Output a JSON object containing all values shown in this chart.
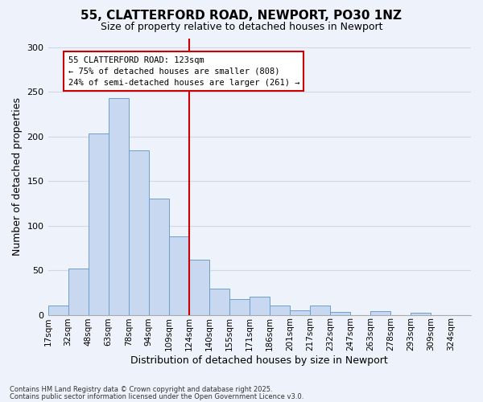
{
  "title": "55, CLATTERFORD ROAD, NEWPORT, PO30 1NZ",
  "subtitle": "Size of property relative to detached houses in Newport",
  "xlabel": "Distribution of detached houses by size in Newport",
  "ylabel": "Number of detached properties",
  "bar_labels": [
    "17sqm",
    "32sqm",
    "48sqm",
    "63sqm",
    "78sqm",
    "94sqm",
    "109sqm",
    "124sqm",
    "140sqm",
    "155sqm",
    "171sqm",
    "186sqm",
    "201sqm",
    "217sqm",
    "232sqm",
    "247sqm",
    "263sqm",
    "278sqm",
    "293sqm",
    "309sqm",
    "324sqm"
  ],
  "bar_heights": [
    10,
    52,
    203,
    243,
    184,
    130,
    88,
    62,
    29,
    18,
    20,
    10,
    5,
    10,
    3,
    0,
    4,
    0,
    2,
    0,
    0
  ],
  "bar_color": "#c8d8f0",
  "bar_edge_color": "#6ba0cc",
  "vline_label": "124sqm",
  "vline_index": 7,
  "vline_color": "#cc0000",
  "annotation_title": "55 CLATTERFORD ROAD: 123sqm",
  "annotation_line1": "← 75% of detached houses are smaller (808)",
  "annotation_line2": "24% of semi-detached houses are larger (261) →",
  "annotation_box_color": "#ffffff",
  "annotation_box_edge": "#cc0000",
  "ylim": [
    0,
    310
  ],
  "yticks": [
    0,
    50,
    100,
    150,
    200,
    250,
    300
  ],
  "footnote1": "Contains HM Land Registry data © Crown copyright and database right 2025.",
  "footnote2": "Contains public sector information licensed under the Open Government Licence v3.0.",
  "background_color": "#eef2fa",
  "grid_color": "#d0d8e8",
  "title_fontsize": 11,
  "subtitle_fontsize": 9,
  "axis_label_fontsize": 9,
  "tick_fontsize": 7.5,
  "annotation_fontsize": 7.5
}
